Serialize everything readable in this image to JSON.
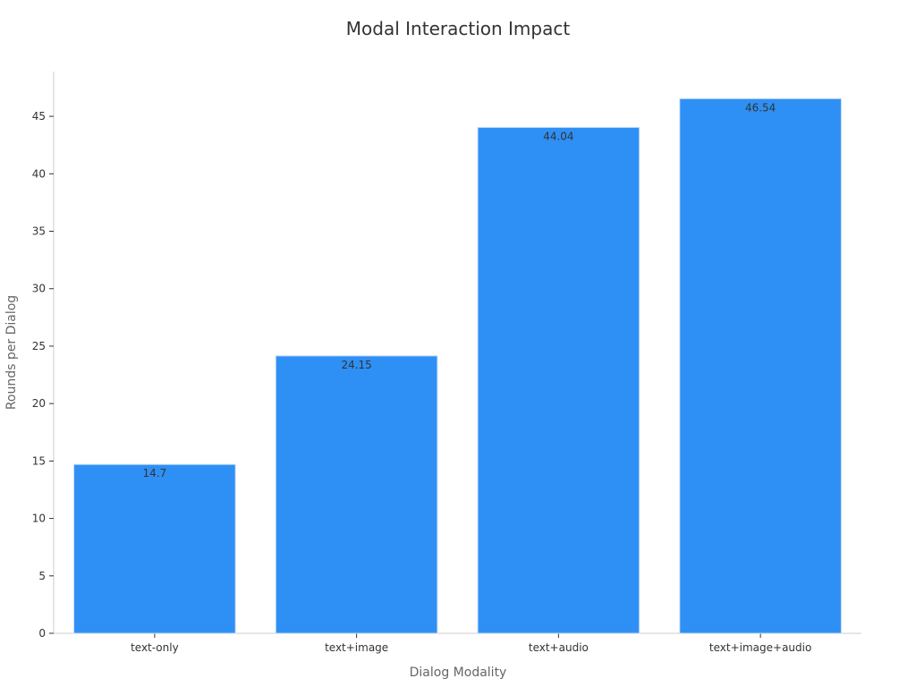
{
  "chart_data": {
    "type": "bar",
    "title": "Modal Interaction Impact",
    "xlabel": "Dialog Modality",
    "ylabel": "Rounds per Dialog",
    "categories": [
      "text-only",
      "text+image",
      "text+audio",
      "text+image+audio"
    ],
    "values": [
      14.7,
      24.15,
      44.04,
      46.54
    ],
    "data_labels": [
      "14.7",
      "24.15",
      "44.04",
      "46.54"
    ],
    "yticks": [
      0,
      5,
      10,
      15,
      20,
      25,
      30,
      35,
      40,
      45
    ],
    "ytick_labels": [
      "0",
      "5",
      "10",
      "15",
      "20",
      "25",
      "30",
      "35",
      "40",
      "45"
    ],
    "ylim": [
      0,
      48.9
    ],
    "grid": false,
    "legend": "none",
    "bar_color": "#2e90f5",
    "bar_edge_color": "#c8dcf5",
    "axis_color": "#cccccc",
    "text_color": "#333333",
    "axis_title_color": "#666666"
  }
}
